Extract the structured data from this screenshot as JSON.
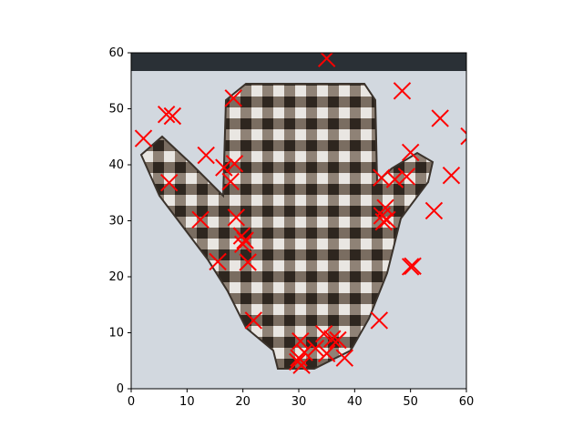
{
  "chart_data": {
    "type": "scatter",
    "title": "",
    "xlabel": "",
    "ylabel": "",
    "xlim": [
      0,
      60
    ],
    "ylim": [
      0,
      60
    ],
    "xticks": [
      "0",
      "10",
      "20",
      "30",
      "40",
      "50",
      "60"
    ],
    "yticks": [
      "0",
      "10",
      "20",
      "30",
      "40",
      "50",
      "60"
    ],
    "grid": false,
    "background": "pixelated grayscale photo of a plaid/checkered mitten-shaped glove on a pale blue-gray background",
    "marker": "x",
    "marker_color": "#ff0000",
    "points": [
      [
        35.0,
        59.0
      ],
      [
        2.2,
        44.7
      ],
      [
        6.3,
        49.0
      ],
      [
        7.4,
        48.7
      ],
      [
        18.3,
        51.9
      ],
      [
        48.5,
        53.2
      ],
      [
        55.3,
        48.3
      ],
      [
        60.5,
        45.1
      ],
      [
        13.4,
        41.7
      ],
      [
        16.6,
        39.5
      ],
      [
        18.5,
        40.2
      ],
      [
        17.8,
        37.0
      ],
      [
        6.8,
        36.8
      ],
      [
        50.0,
        42.2
      ],
      [
        47.2,
        37.4
      ],
      [
        49.3,
        37.9
      ],
      [
        44.8,
        37.7
      ],
      [
        57.3,
        38.1
      ],
      [
        12.4,
        30.2
      ],
      [
        18.8,
        30.6
      ],
      [
        54.2,
        31.8
      ],
      [
        45.5,
        32.3
      ],
      [
        44.9,
        30.9
      ],
      [
        45.8,
        30.2
      ],
      [
        45.2,
        29.8
      ],
      [
        19.8,
        27.3
      ],
      [
        20.4,
        26.5
      ],
      [
        20.0,
        25.8
      ],
      [
        15.5,
        22.7
      ],
      [
        20.9,
        22.6
      ],
      [
        50.0,
        21.8
      ],
      [
        50.4,
        21.9
      ],
      [
        21.9,
        12.2
      ],
      [
        44.4,
        12.2
      ],
      [
        30.3,
        8.5
      ],
      [
        34.5,
        9.8
      ],
      [
        36.0,
        8.9
      ],
      [
        37.0,
        8.7
      ],
      [
        33.0,
        7.2
      ],
      [
        31.0,
        6.5
      ],
      [
        35.0,
        6.3
      ],
      [
        38.2,
        5.5
      ],
      [
        30.0,
        5.5
      ],
      [
        29.8,
        4.8
      ],
      [
        30.5,
        4.2
      ]
    ]
  }
}
